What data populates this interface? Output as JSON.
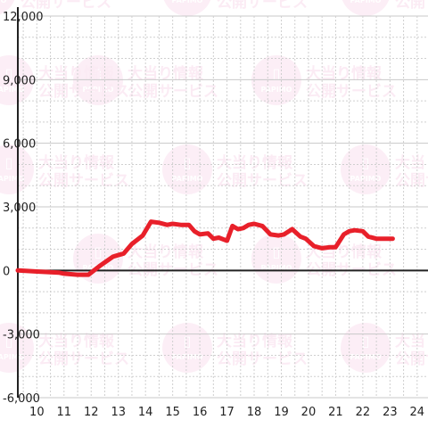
{
  "chart_data": {
    "type": "line",
    "title": "",
    "xlabel": "",
    "ylabel": "",
    "xlim": [
      9.3,
      24.4
    ],
    "ylim": [
      -6000,
      12000
    ],
    "x_ticks": [
      10,
      11,
      12,
      13,
      14,
      15,
      16,
      17,
      18,
      19,
      20,
      21,
      22,
      23,
      24
    ],
    "y_ticks": [
      -6000,
      -3000,
      0,
      3000,
      6000,
      9000,
      12000
    ],
    "x_tick_labels": [
      "10",
      "11",
      "12",
      "13",
      "14",
      "15",
      "16",
      "17",
      "18",
      "19",
      "20",
      "21",
      "22",
      "23",
      "24"
    ],
    "y_tick_labels": [
      "-6,000",
      "-3,000",
      "0",
      "3,000",
      "6,000",
      "9,000",
      "12,000"
    ],
    "grid": true,
    "legend": "none",
    "series": [
      {
        "color": "#e8202a",
        "x": [
          9.3,
          10.0,
          10.8,
          11.0,
          11.5,
          11.9,
          12.3,
          12.8,
          13.2,
          13.5,
          13.9,
          14.2,
          14.5,
          14.8,
          15.0,
          15.3,
          15.6,
          15.8,
          16.0,
          16.3,
          16.5,
          16.7,
          17.0,
          17.2,
          17.4,
          17.6,
          17.8,
          18.0,
          18.3,
          18.6,
          18.9,
          19.1,
          19.4,
          19.7,
          19.9,
          20.2,
          20.5,
          20.8,
          21.0,
          21.3,
          21.5,
          21.7,
          22.0,
          22.2,
          22.5,
          22.8,
          23.1
        ],
        "values": [
          0,
          -50,
          -100,
          -150,
          -200,
          -200,
          200,
          650,
          800,
          1250,
          1650,
          2300,
          2250,
          2150,
          2200,
          2150,
          2150,
          1850,
          1700,
          1750,
          1500,
          1550,
          1400,
          2100,
          1950,
          2000,
          2150,
          2200,
          2100,
          1700,
          1650,
          1700,
          1950,
          1600,
          1500,
          1150,
          1050,
          1100,
          1100,
          1700,
          1850,
          1900,
          1850,
          1600,
          1500,
          1500,
          1500
        ]
      }
    ]
  },
  "watermark": {
    "brand": "PAPIMO",
    "line1": "大当り情報",
    "line2": "公開サービス",
    "glyph": "▯",
    "circle_color": "#f4b6d8",
    "text_color": "#f0a8cf"
  },
  "colors": {
    "grid_major": "#c8c8c8",
    "grid_minor": "#cfcfcf",
    "axis": "#222222",
    "tick_text": "#222222"
  }
}
